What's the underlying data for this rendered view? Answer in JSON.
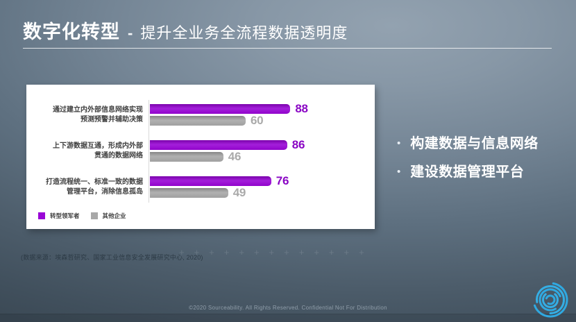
{
  "slide": {
    "title": {
      "highlight": "数字化转型",
      "separator": "-",
      "subtitle": "提升全业务全流程数据透明度"
    },
    "bullets": [
      {
        "marker": "•",
        "label": "构建数据与信息网络"
      },
      {
        "marker": "•",
        "label": "建设数据管理平台"
      }
    ],
    "source_note": "(数据来源：埃森哲研究、国家工业信息安全发展研究中心, 2020)",
    "footer_text": "©2020 Sourceability. All Rights Reserved. Confidential Not For Distribution",
    "decor_plus_row": "+++++++++++++"
  },
  "chart_data": {
    "type": "bar",
    "orientation": "horizontal",
    "categories": [
      [
        "通过建立内外部信息网络实现",
        "预测预警并辅助决策"
      ],
      [
        "上下游数据互通，形成内外部",
        "贯通的数据网络"
      ],
      [
        "打造流程统一、标准一致的数据",
        "管理平台，消除信息孤岛"
      ]
    ],
    "series": [
      {
        "name": "转型领军者",
        "color": "#9905d6",
        "label_color": "#8a06c4",
        "values": [
          88,
          86,
          76
        ]
      },
      {
        "name": "其他企业",
        "color": "#a8a8a8",
        "label_color": "#aaaaaa",
        "values": [
          60,
          46,
          49
        ]
      }
    ],
    "xlim": [
      0,
      100
    ],
    "grid": false,
    "value_labels": true,
    "legend_position": "bottom-left"
  },
  "colors": {
    "accent_purple": "#9905d6",
    "bar_gray": "#a8a8a8",
    "logo_blue": "#2fa9e1"
  }
}
